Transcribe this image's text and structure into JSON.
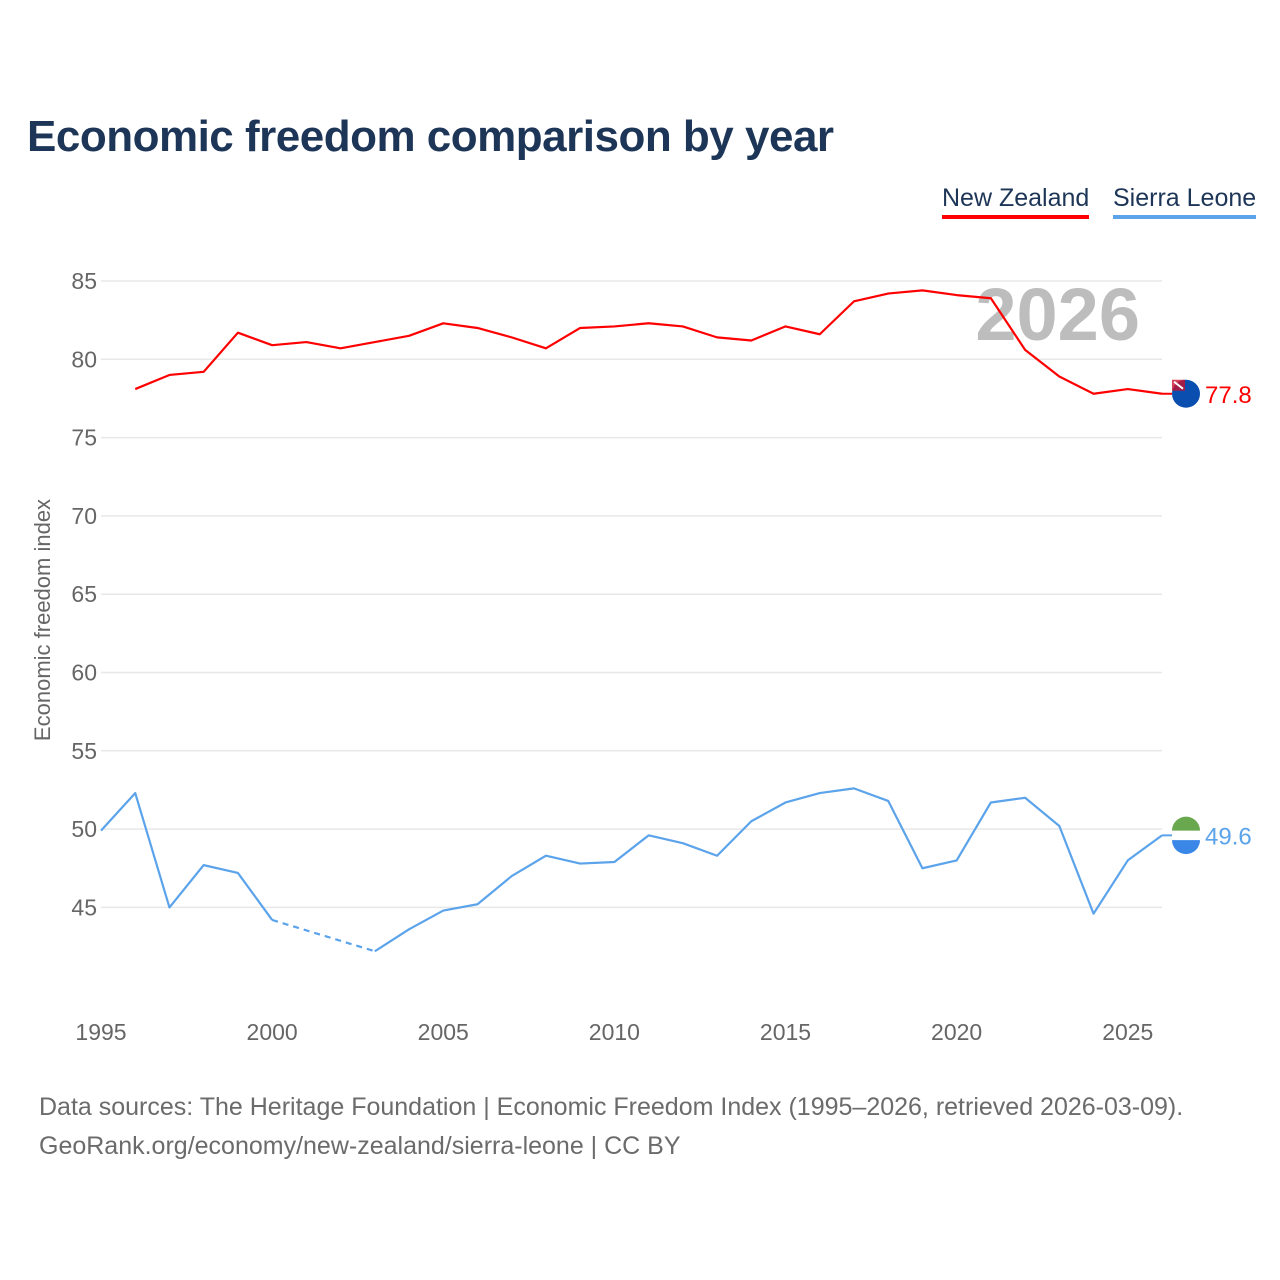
{
  "chart_data": {
    "type": "line",
    "title": "Economic freedom comparison by year",
    "xlabel": "",
    "ylabel": "Economic freedom index",
    "xlim": [
      1995,
      2026
    ],
    "ylim": [
      40,
      87
    ],
    "yticks": [
      45,
      50,
      55,
      60,
      65,
      70,
      75,
      80,
      85
    ],
    "xticks": [
      1995,
      2000,
      2005,
      2010,
      2015,
      2020,
      2025
    ],
    "grid": true,
    "legend_position": "top-right",
    "watermark_year": "2026",
    "series": [
      {
        "name": "New Zealand",
        "color": "#ff0000",
        "end_label": "77.8",
        "flag_icon": "new-zealand-flag",
        "x": [
          1996,
          1997,
          1998,
          1999,
          2000,
          2001,
          2002,
          2003,
          2004,
          2005,
          2006,
          2007,
          2008,
          2009,
          2010,
          2011,
          2012,
          2013,
          2014,
          2015,
          2016,
          2017,
          2018,
          2019,
          2020,
          2021,
          2022,
          2023,
          2024,
          2025,
          2026
        ],
        "values": [
          78.1,
          79.0,
          79.2,
          81.7,
          80.9,
          81.1,
          80.7,
          81.1,
          81.5,
          82.3,
          82.0,
          81.4,
          80.7,
          82.0,
          82.1,
          82.3,
          82.1,
          81.4,
          81.2,
          82.1,
          81.6,
          83.7,
          84.2,
          84.4,
          84.1,
          83.9,
          80.6,
          78.9,
          77.8,
          78.1,
          77.8
        ]
      },
      {
        "name": "Sierra Leone",
        "color": "#5ba3ea",
        "end_label": "49.6",
        "flag_icon": "sierra-leone-flag",
        "x": [
          1995,
          1996,
          1997,
          1998,
          1999,
          2000,
          2001,
          2002,
          2003,
          2004,
          2005,
          2006,
          2007,
          2008,
          2009,
          2010,
          2011,
          2012,
          2013,
          2014,
          2015,
          2016,
          2017,
          2018,
          2019,
          2020,
          2021,
          2022,
          2023,
          2024,
          2025,
          2026
        ],
        "values": [
          49.9,
          52.3,
          45.0,
          47.7,
          47.2,
          44.2,
          null,
          null,
          42.2,
          43.6,
          44.8,
          45.2,
          47.0,
          48.3,
          47.8,
          47.9,
          49.6,
          49.1,
          48.3,
          50.5,
          51.7,
          52.3,
          52.6,
          51.8,
          47.5,
          48.0,
          51.7,
          52.0,
          50.2,
          44.6,
          48.0,
          49.6
        ]
      }
    ]
  },
  "footer": {
    "line1": "Data sources: The Heritage Foundation | Economic Freedom Index (1995–2026, retrieved 2026-03-09).",
    "line2": "GeoRank.org/economy/new-zealand/sierra-leone | CC BY"
  }
}
